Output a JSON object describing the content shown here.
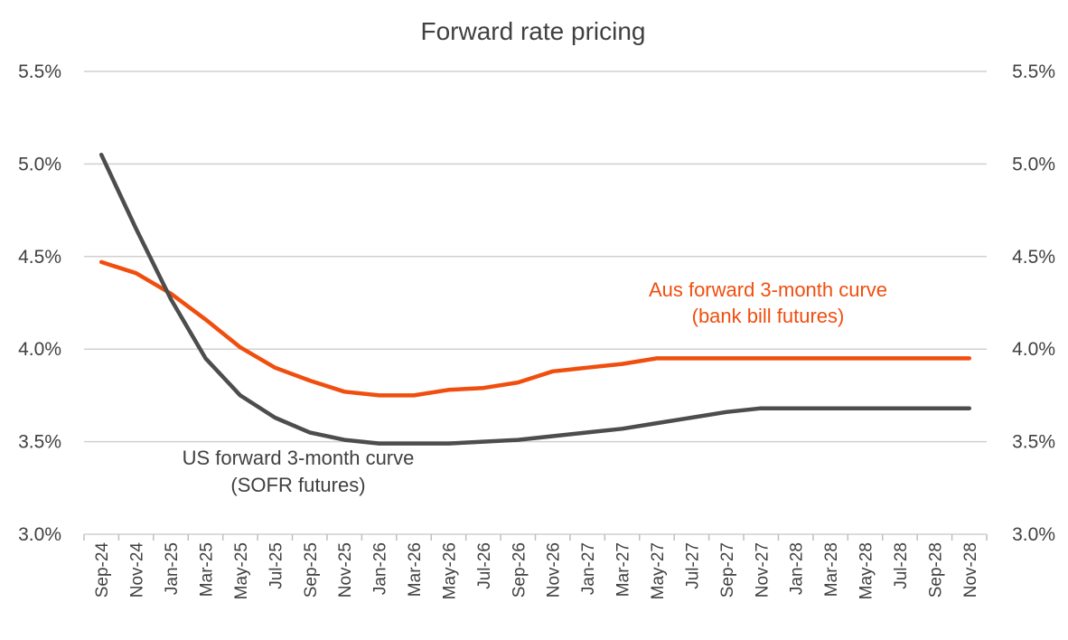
{
  "chart_data": {
    "type": "line",
    "title": "Forward rate pricing",
    "xlabel": "",
    "ylabel": "",
    "ylim": [
      3.0,
      5.5
    ],
    "yticks": [
      "3.0%",
      "3.5%",
      "4.0%",
      "4.5%",
      "5.0%",
      "5.5%"
    ],
    "ytick_values": [
      3.0,
      3.5,
      4.0,
      4.5,
      5.0,
      5.5
    ],
    "grid": true,
    "categories": [
      "Sep-24",
      "Nov-24",
      "Jan-25",
      "Mar-25",
      "May-25",
      "Jul-25",
      "Sep-25",
      "Nov-25",
      "Jan-26",
      "Mar-26",
      "May-26",
      "Jul-26",
      "Sep-26",
      "Nov-26",
      "Jan-27",
      "Mar-27",
      "May-27",
      "Jul-27",
      "Sep-27",
      "Nov-27",
      "Jan-28",
      "Mar-28",
      "May-28",
      "Jul-28",
      "Sep-28",
      "Nov-28"
    ],
    "series": [
      {
        "name": "Aus forward 3-month curve",
        "annotation": [
          "Aus forward 3-month curve",
          "(bank bill futures)"
        ],
        "color": "#f04e0f",
        "values": [
          4.47,
          4.41,
          4.3,
          4.16,
          4.01,
          3.9,
          3.83,
          3.77,
          3.75,
          3.75,
          3.78,
          3.79,
          3.82,
          3.88,
          3.9,
          3.92,
          3.95,
          3.95,
          3.95,
          3.95,
          3.95,
          3.95,
          3.95,
          3.95,
          3.95,
          3.95
        ]
      },
      {
        "name": "US forward 3-month curve",
        "annotation": [
          "US forward 3-month curve",
          "(SOFR futures)"
        ],
        "color": "#4d4d4d",
        "values": [
          5.05,
          4.65,
          4.27,
          3.95,
          3.75,
          3.63,
          3.55,
          3.51,
          3.49,
          3.49,
          3.49,
          3.5,
          3.51,
          3.53,
          3.55,
          3.57,
          3.6,
          3.63,
          3.66,
          3.68,
          3.68,
          3.68,
          3.68,
          3.68,
          3.68,
          3.68
        ]
      }
    ]
  }
}
